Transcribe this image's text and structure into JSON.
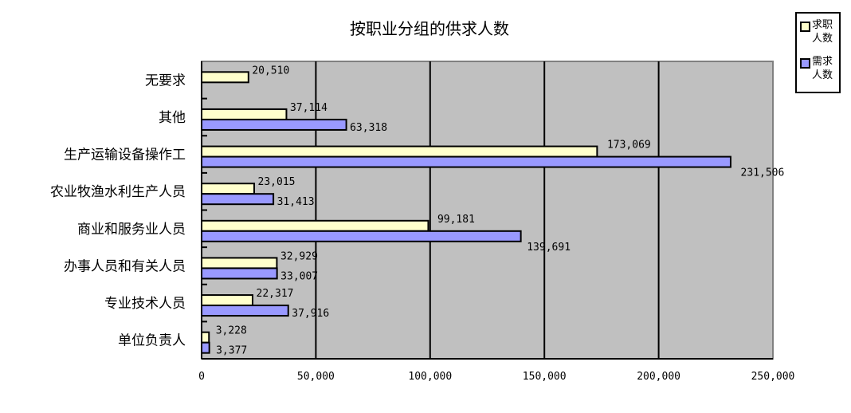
{
  "chart_data": {
    "type": "bar",
    "orientation": "horizontal",
    "title": "按职业分组的供求人数",
    "categories": [
      "无要求",
      "其他",
      "生产运输设备操作工",
      "农业牧渔水利生产人员",
      "商业和服务业人员",
      "办事人员和有关人员",
      "专业技术人员",
      "单位负责人"
    ],
    "series": [
      {
        "name": "求职人数",
        "color": "#FFFFCC",
        "values": [
          20510,
          37114,
          173069,
          23015,
          99181,
          32929,
          22317,
          3228
        ]
      },
      {
        "name": "需求人数",
        "color": "#9999FF",
        "values": [
          null,
          63318,
          231506,
          31413,
          139691,
          33007,
          37916,
          3377
        ]
      }
    ],
    "data_labels": [
      [
        "20,510",
        "37,114",
        "173,069",
        "23,015",
        "99,181",
        "32,929",
        "22,317",
        "3,228"
      ],
      [
        "",
        "63,318",
        "231,506",
        "31,413",
        "139,691",
        "33,007",
        "37,916",
        "3,377"
      ]
    ],
    "xlim": [
      0,
      250000
    ],
    "xticks": [
      0,
      50000,
      100000,
      150000,
      200000,
      250000
    ],
    "xtick_labels": [
      "0",
      "50,000",
      "100,000",
      "150,000",
      "200,000",
      "250,000"
    ],
    "grid": "vertical",
    "plot_background": "#C0C0C0",
    "legend_position": "right"
  }
}
